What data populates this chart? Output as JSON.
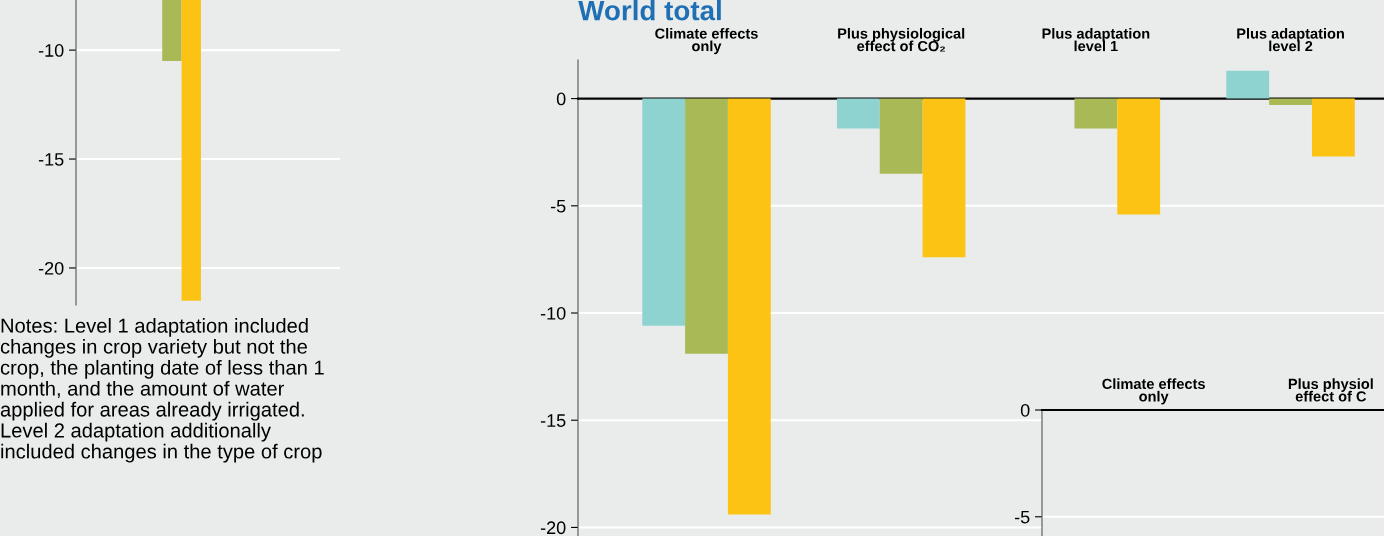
{
  "chart_data": [
    {
      "type": "bar",
      "categories": [
        null
      ],
      "ylim": [
        -21.7,
        -7.7
      ],
      "yticks": [
        -10,
        -15,
        -20
      ],
      "grid": "y",
      "annotations": [
        "Notes: Level 1 adaptation included\nchanges in crop variety but not the\ncrop, the planting date of less than 1\nmonth, and the amount of water\napplied for areas already irrigated.\nLevel 2 adaptation additionally\nincluded changes in the type of crop"
      ],
      "series": [
        {
          "color": "#a9b955",
          "values": [
            -10.5
          ]
        },
        {
          "color": "#fdc314",
          "values": [
            -21.5
          ]
        }
      ]
    },
    {
      "type": "bar",
      "title": "World total",
      "categories": [
        "Climate effects\nonly",
        "Plus physiological\neffect of CO₂",
        "Plus adaptation\nlevel 1",
        "Plus adaptation\nlevel 2"
      ],
      "ylim": [
        -20.4,
        1.8
      ],
      "yticks": [
        0,
        -5,
        -10,
        -15,
        -20
      ],
      "grid": "y",
      "series": [
        {
          "color": "#8fd3d0",
          "values": [
            -10.6,
            -1.4,
            null,
            1.3
          ]
        },
        {
          "color": "#a9b955",
          "values": [
            -11.9,
            -3.5,
            -1.4,
            -0.3
          ]
        },
        {
          "color": "#fdc314",
          "values": [
            -19.4,
            -7.4,
            -5.4,
            -2.7
          ]
        }
      ]
    },
    {
      "type": "bar",
      "categories": [
        "Climate effects\nonly",
        "Plus physiol\neffect of C"
      ],
      "ylim": [
        -5.9,
        0
      ],
      "yticks": [
        0,
        -5
      ],
      "grid": "y"
    }
  ]
}
